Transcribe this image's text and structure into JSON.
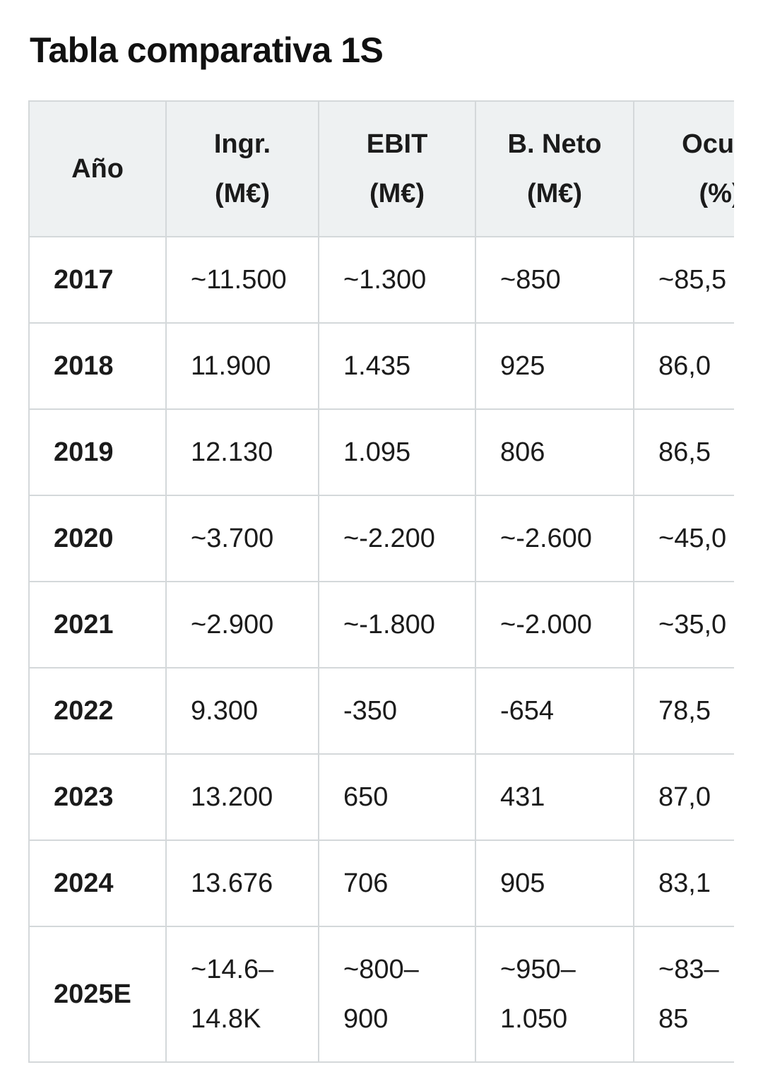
{
  "title": "Tabla comparativa 1S",
  "headers": [
    {
      "line1": "Año",
      "line2": ""
    },
    {
      "line1": "Ingr.",
      "line2": "(M€)"
    },
    {
      "line1": "EBIT",
      "line2": "(M€)"
    },
    {
      "line1": "B. Neto",
      "line2": "(M€)"
    },
    {
      "line1": "Ocup.",
      "line2": "(%)"
    }
  ],
  "rows": [
    {
      "year": "2017",
      "cells": [
        [
          "~11.500"
        ],
        [
          "~1.300"
        ],
        [
          "~850"
        ],
        [
          "~85,5"
        ]
      ]
    },
    {
      "year": "2018",
      "cells": [
        [
          "11.900"
        ],
        [
          "1.435"
        ],
        [
          "925"
        ],
        [
          "86,0"
        ]
      ]
    },
    {
      "year": "2019",
      "cells": [
        [
          "12.130"
        ],
        [
          "1.095"
        ],
        [
          "806"
        ],
        [
          "86,5"
        ]
      ]
    },
    {
      "year": "2020",
      "cells": [
        [
          "~3.700"
        ],
        [
          "~-2.200"
        ],
        [
          "~-2.600"
        ],
        [
          "~45,0"
        ]
      ]
    },
    {
      "year": "2021",
      "cells": [
        [
          "~2.900"
        ],
        [
          "~-1.800"
        ],
        [
          "~-2.000"
        ],
        [
          "~35,0"
        ]
      ]
    },
    {
      "year": "2022",
      "cells": [
        [
          "9.300"
        ],
        [
          "-350"
        ],
        [
          "-654"
        ],
        [
          "78,5"
        ]
      ]
    },
    {
      "year": "2023",
      "cells": [
        [
          "13.200"
        ],
        [
          "650"
        ],
        [
          "431"
        ],
        [
          "87,0"
        ]
      ]
    },
    {
      "year": "2024",
      "cells": [
        [
          "13.676"
        ],
        [
          "706"
        ],
        [
          "905"
        ],
        [
          "83,1"
        ]
      ]
    },
    {
      "year": "2025E",
      "cells": [
        [
          "~14.6–",
          "14.8K"
        ],
        [
          "~800–",
          "900"
        ],
        [
          "~950–",
          "1.050"
        ],
        [
          "~83–",
          "85"
        ]
      ]
    }
  ]
}
